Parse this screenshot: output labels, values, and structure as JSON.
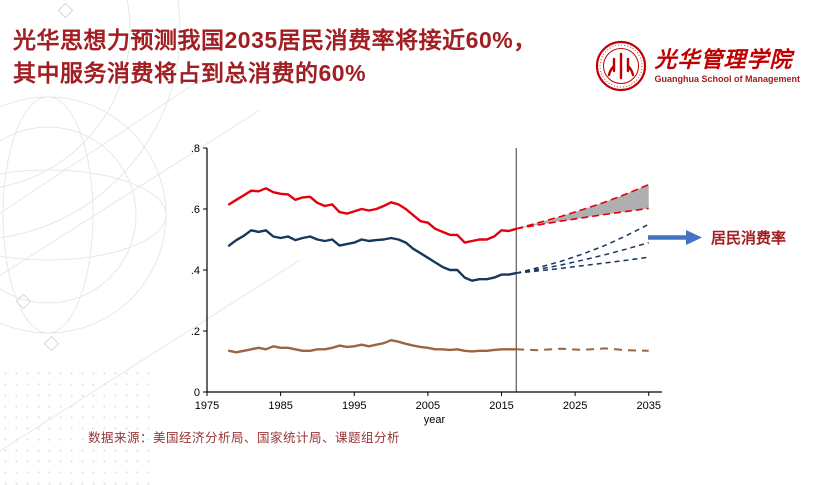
{
  "slide": {
    "title_line1": "光华思想力预测我国2035居民消费率将接近60%，",
    "title_line2": "其中服务消费将占到总消费的60%",
    "annotation_label": "居民消费率",
    "source": "数据来源：美国经济分析局、国家统计局、课题组分析"
  },
  "logo": {
    "name_cn": "光华管理学院",
    "name_en": "Guanghua School of Management"
  },
  "colors": {
    "title_red": "#A11E22",
    "logo_red": "#C00000",
    "logo_text_red": "#9E1B1E",
    "annotation_red": "#A11E22",
    "arrow_blue": "#4472C4",
    "series_red": "#E4000F",
    "series_navy": "#17375E",
    "series_brown": "#9C6440",
    "fan_gray": "#A6A6A6",
    "source_red": "#963634",
    "axis_black": "#000000",
    "reference_line": "#3a3a3a"
  },
  "chart_data": {
    "type": "line",
    "title": "",
    "xlabel": "year",
    "ylabel": "",
    "xlim": [
      1975,
      2036.8
    ],
    "ylim": [
      0,
      0.8
    ],
    "x_ticks": [
      1975,
      1985,
      1995,
      2005,
      2015,
      2025,
      2035
    ],
    "x_tick_labels": [
      "1975",
      "1985",
      "1995",
      "2005",
      "2015",
      "2025",
      "2035"
    ],
    "y_ticks": [
      0,
      0.2,
      0.4,
      0.6,
      0.8
    ],
    "y_tick_labels": [
      "0",
      ".2",
      ".4",
      ".6",
      ".8"
    ],
    "grid": false,
    "legend": "none",
    "vline_x": 2017,
    "history": {
      "years": [
        1978,
        1979,
        1980,
        1981,
        1982,
        1983,
        1984,
        1985,
        1986,
        1987,
        1988,
        1989,
        1990,
        1991,
        1992,
        1993,
        1994,
        1995,
        1996,
        1997,
        1998,
        1999,
        2000,
        2001,
        2002,
        2003,
        2004,
        2005,
        2006,
        2007,
        2008,
        2009,
        2010,
        2011,
        2012,
        2013,
        2014,
        2015,
        2016,
        2017
      ],
      "red": [
        0.615,
        0.63,
        0.645,
        0.66,
        0.658,
        0.668,
        0.655,
        0.65,
        0.648,
        0.63,
        0.638,
        0.64,
        0.62,
        0.61,
        0.615,
        0.59,
        0.585,
        0.592,
        0.6,
        0.595,
        0.6,
        0.61,
        0.622,
        0.615,
        0.6,
        0.58,
        0.56,
        0.555,
        0.535,
        0.525,
        0.515,
        0.515,
        0.49,
        0.495,
        0.5,
        0.5,
        0.51,
        0.53,
        0.528,
        0.535
      ],
      "navy": [
        0.48,
        0.498,
        0.512,
        0.53,
        0.525,
        0.53,
        0.51,
        0.505,
        0.51,
        0.498,
        0.505,
        0.51,
        0.5,
        0.495,
        0.5,
        0.48,
        0.485,
        0.49,
        0.5,
        0.495,
        0.498,
        0.5,
        0.505,
        0.5,
        0.49,
        0.47,
        0.455,
        0.44,
        0.425,
        0.41,
        0.4,
        0.4,
        0.375,
        0.365,
        0.37,
        0.37,
        0.375,
        0.385,
        0.385,
        0.39
      ],
      "brown": [
        0.135,
        0.13,
        0.135,
        0.14,
        0.145,
        0.14,
        0.15,
        0.145,
        0.145,
        0.14,
        0.135,
        0.135,
        0.14,
        0.14,
        0.145,
        0.152,
        0.148,
        0.15,
        0.155,
        0.15,
        0.155,
        0.16,
        0.17,
        0.165,
        0.158,
        0.152,
        0.148,
        0.145,
        0.14,
        0.14,
        0.138,
        0.14,
        0.135,
        0.133,
        0.135,
        0.135,
        0.138,
        0.14,
        0.14,
        0.14
      ]
    },
    "projection": {
      "years": [
        2017,
        2020,
        2023,
        2026,
        2029,
        2032,
        2035
      ],
      "red_fan_upper": [
        0.535,
        0.555,
        0.575,
        0.598,
        0.622,
        0.65,
        0.68
      ],
      "red_fan_lower": [
        0.535,
        0.548,
        0.56,
        0.571,
        0.582,
        0.592,
        0.602
      ],
      "navy_upper": [
        0.39,
        0.408,
        0.428,
        0.452,
        0.48,
        0.513,
        0.55
      ],
      "navy_mid": [
        0.39,
        0.402,
        0.416,
        0.432,
        0.45,
        0.469,
        0.49
      ],
      "navy_lower": [
        0.39,
        0.397,
        0.405,
        0.414,
        0.423,
        0.432,
        0.442
      ],
      "brown": [
        0.14,
        0.137,
        0.142,
        0.138,
        0.143,
        0.137,
        0.135
      ]
    }
  }
}
